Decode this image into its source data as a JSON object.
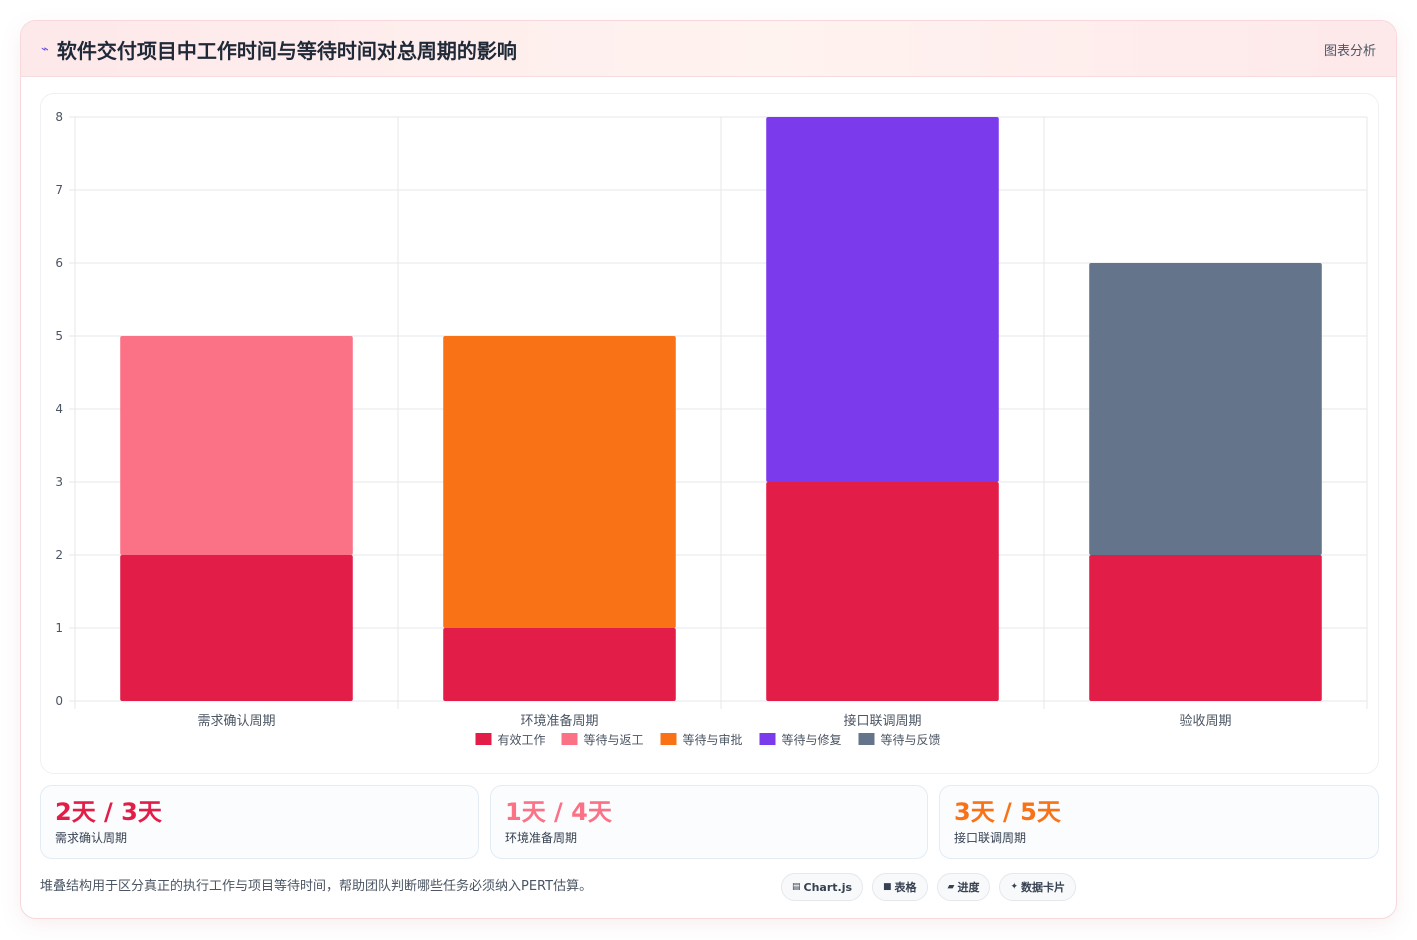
{
  "header": {
    "icon": "chart-squiggle-icon",
    "title": "软件交付项目中工作时间与等待时间对总周期的影响",
    "tag": "图表分析"
  },
  "chart_data": {
    "type": "bar",
    "stacked": true,
    "categories": [
      "需求确认周期",
      "环境准备周期",
      "接口联调周期",
      "验收周期"
    ],
    "ylim": [
      0,
      8
    ],
    "yticks": [
      0,
      1,
      2,
      3,
      4,
      5,
      6,
      7,
      8
    ],
    "grid": true,
    "legend_position": "bottom",
    "series": [
      {
        "name": "有效工作",
        "color": "#e11d48",
        "values": [
          2,
          1,
          3,
          2
        ]
      },
      {
        "name": "等待与返工",
        "color": "#fb7185",
        "values": [
          3,
          0,
          0,
          0
        ]
      },
      {
        "name": "等待与审批",
        "color": "#f97316",
        "values": [
          0,
          4,
          0,
          0
        ]
      },
      {
        "name": "等待与修复",
        "color": "#7c3aed",
        "values": [
          0,
          0,
          5,
          0
        ]
      },
      {
        "name": "等待与反馈",
        "color": "#64748b",
        "values": [
          0,
          0,
          0,
          4
        ]
      }
    ]
  },
  "stats": [
    {
      "value": "2天 / 3天",
      "label": "需求确认周期",
      "color": "#e11d48"
    },
    {
      "value": "1天 / 4天",
      "label": "环境准备周期",
      "color": "#fb7185"
    },
    {
      "value": "3天 / 5天",
      "label": "接口联调周期",
      "color": "#f97316"
    }
  ],
  "footer": {
    "note": "堆叠结构用于区分真正的执行工作与项目等待时间，帮助团队判断哪些任务必须纳入PERT估算。",
    "chips": [
      {
        "icon": "chart-icon",
        "glyph": "▤",
        "label": "Chart.js"
      },
      {
        "icon": "table-icon",
        "glyph": "■",
        "label": "表格"
      },
      {
        "icon": "progress-icon",
        "glyph": "▰",
        "label": "进度"
      },
      {
        "icon": "sparkle-icon",
        "glyph": "✦",
        "label": "数据卡片"
      }
    ]
  }
}
